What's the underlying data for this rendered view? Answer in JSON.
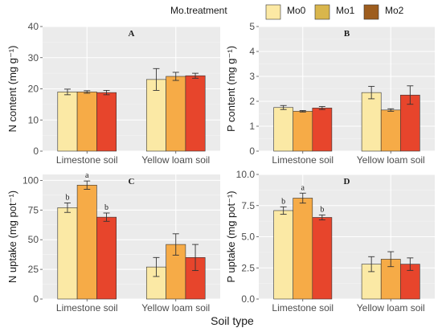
{
  "legend": {
    "title": "Mo.treatment",
    "items": [
      {
        "label": "Mo0",
        "color": "#fce9a4"
      },
      {
        "label": "Mo1",
        "color": "#d9b64c"
      },
      {
        "label": "Mo2",
        "color": "#9e5d1e"
      }
    ]
  },
  "x_title": "Soil type",
  "chart_data": [
    {
      "type": "bar",
      "panel": "A",
      "categories": [
        "Limestone soil",
        "Yellow loam soil"
      ],
      "ylabel": "N content (mg g⁻¹)",
      "ylim": [
        0,
        40
      ],
      "yticks": [
        "0",
        "10",
        "20",
        "30",
        "40"
      ],
      "series": [
        {
          "name": "Mo0",
          "color": "#fbe9a5",
          "values": [
            19,
            23
          ],
          "errors": [
            0.9,
            3.5
          ]
        },
        {
          "name": "Mo1",
          "color": "#f6ab47",
          "values": [
            19,
            24
          ],
          "errors": [
            0.4,
            1.3
          ]
        },
        {
          "name": "Mo2",
          "color": "#e7452c",
          "values": [
            18.8,
            24.2
          ],
          "errors": [
            0.7,
            0.8
          ]
        }
      ],
      "sig": []
    },
    {
      "type": "bar",
      "panel": "B",
      "categories": [
        "Limestone soil",
        "Yellow loam soil"
      ],
      "ylabel": "P content (mg g⁻¹)",
      "ylim": [
        0,
        5
      ],
      "yticks": [
        "0",
        "1",
        "2",
        "3",
        "4",
        "5"
      ],
      "series": [
        {
          "name": "Mo0",
          "color": "#fbe9a5",
          "values": [
            1.75,
            2.35
          ],
          "errors": [
            0.08,
            0.25
          ]
        },
        {
          "name": "Mo1",
          "color": "#f6ab47",
          "values": [
            1.6,
            1.65
          ],
          "errors": [
            0.03,
            0.05
          ]
        },
        {
          "name": "Mo2",
          "color": "#e7452c",
          "values": [
            1.73,
            2.25
          ],
          "errors": [
            0.06,
            0.37
          ]
        }
      ],
      "sig": []
    },
    {
      "type": "bar",
      "panel": "C",
      "categories": [
        "Limestone soil",
        "Yellow loam soil"
      ],
      "ylabel": "N uptake (mg pot⁻¹)",
      "ylim": [
        0,
        105
      ],
      "yticks": [
        "0",
        "25",
        "50",
        "75",
        "100"
      ],
      "series": [
        {
          "name": "Mo0",
          "color": "#fbe9a5",
          "values": [
            77,
            27
          ],
          "errors": [
            4,
            8
          ]
        },
        {
          "name": "Mo1",
          "color": "#f6ab47",
          "values": [
            96,
            46
          ],
          "errors": [
            3.5,
            9
          ]
        },
        {
          "name": "Mo2",
          "color": "#e7452c",
          "values": [
            69,
            35
          ],
          "errors": [
            3.5,
            11
          ]
        }
      ],
      "sig": [
        [
          "b",
          "",
          ""
        ],
        [
          "a",
          "",
          ""
        ],
        [
          "b",
          "",
          ""
        ]
      ]
    },
    {
      "type": "bar",
      "panel": "D",
      "categories": [
        "Limestone soil",
        "Yellow loam soil"
      ],
      "ylabel": "P uptake (mg pot⁻¹)",
      "ylim": [
        0,
        10
      ],
      "yticks": [
        "0.0",
        "2.5",
        "5.0",
        "7.5",
        "10.0"
      ],
      "series": [
        {
          "name": "Mo0",
          "color": "#fbe9a5",
          "values": [
            7.1,
            2.8
          ],
          "errors": [
            0.3,
            0.6
          ]
        },
        {
          "name": "Mo1",
          "color": "#f6ab47",
          "values": [
            8.1,
            3.2
          ],
          "errors": [
            0.4,
            0.6
          ]
        },
        {
          "name": "Mo2",
          "color": "#e7452c",
          "values": [
            6.55,
            2.8
          ],
          "errors": [
            0.2,
            0.5
          ]
        }
      ],
      "sig": [
        [
          "b",
          "",
          ""
        ],
        [
          "a",
          "",
          ""
        ],
        [
          "b",
          "",
          ""
        ]
      ]
    }
  ]
}
